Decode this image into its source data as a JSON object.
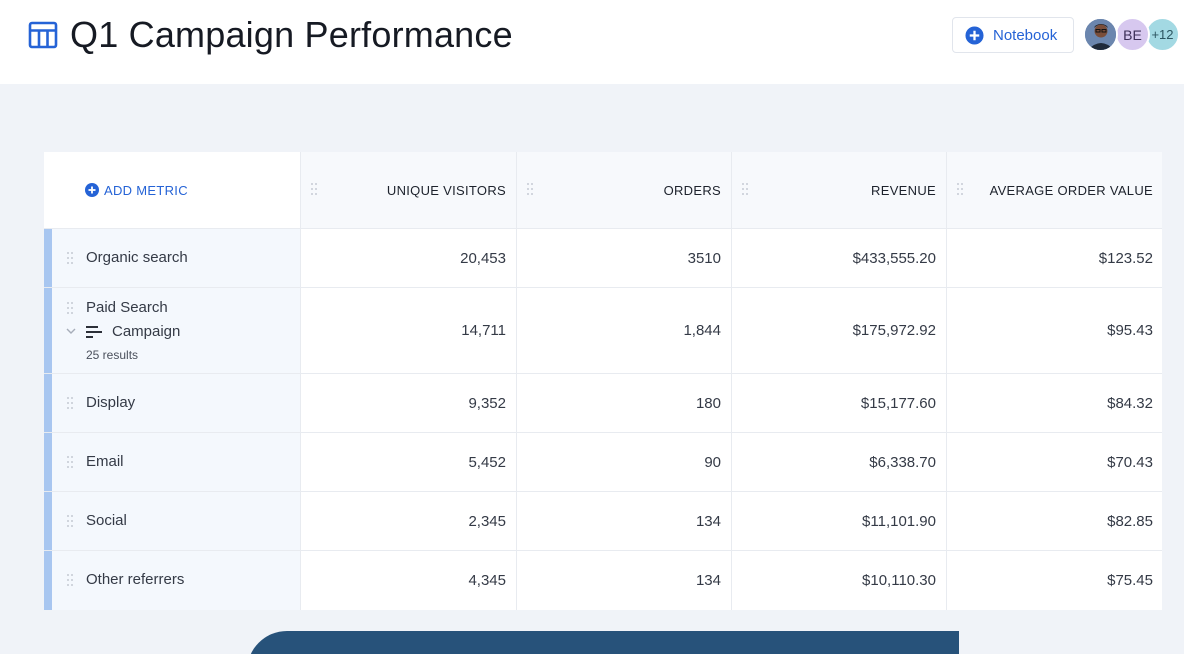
{
  "header": {
    "title": "Q1 Campaign Performance",
    "title_icon": "table-icon",
    "notebook_button": {
      "label": "Notebook",
      "icon": "plus-circle-icon"
    },
    "avatars": [
      {
        "type": "photo"
      },
      {
        "initials": "BE"
      },
      {
        "initials": "+12"
      }
    ]
  },
  "table": {
    "add_metric_label": "ADD METRIC",
    "columns": [
      "UNIQUE VISITORS",
      "ORDERS",
      "REVENUE",
      "AVERAGE ORDER VALUE"
    ],
    "rows": [
      {
        "label": "Organic search",
        "values": [
          "20,453",
          "3510",
          "$433,555.20",
          "$123.52"
        ]
      },
      {
        "label": "Paid Search",
        "sub_label": "Campaign",
        "sub_note": "25 results",
        "values": [
          "14,711",
          "1,844",
          "$175,972.92",
          "$95.43"
        ]
      },
      {
        "label": "Display",
        "values": [
          "9,352",
          "180",
          "$15,177.60",
          "$84.32"
        ]
      },
      {
        "label": "Email",
        "values": [
          "5,452",
          "90",
          "$6,338.70",
          "$70.43"
        ]
      },
      {
        "label": "Social",
        "values": [
          "2,345",
          "134",
          "$11,101.90",
          "$82.85"
        ]
      },
      {
        "label": "Other referrers",
        "values": [
          "4,345",
          "134",
          "$10,110.30",
          "$75.45"
        ]
      }
    ]
  },
  "colors": {
    "accent": "#2563d6",
    "dimension_bar": "#a8c6f0",
    "background": "#f0f3f8",
    "bottom_panel": "#27527a"
  }
}
